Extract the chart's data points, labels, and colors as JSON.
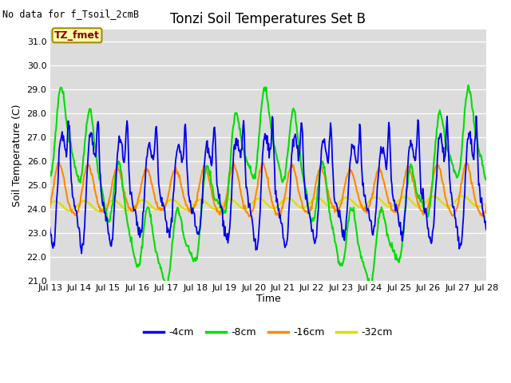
{
  "title": "Tonzi Soil Temperatures Set B",
  "xlabel": "Time",
  "ylabel": "Soil Temperature (C)",
  "no_data_text": "No data for f_Tsoil_2cmB",
  "tz_label": "TZ_fmet",
  "ylim": [
    21.0,
    31.5
  ],
  "yticks": [
    21.0,
    22.0,
    23.0,
    24.0,
    25.0,
    26.0,
    27.0,
    28.0,
    29.0,
    30.0,
    31.0
  ],
  "bg_color": "#dcdcdc",
  "line_colors": [
    "#0000ee",
    "#00dd00",
    "#ff8800",
    "#dddd00"
  ],
  "line_labels": [
    "-4cm",
    "-8cm",
    "-16cm",
    "-32cm"
  ],
  "mean_4cm": 25.8,
  "amp_4cm": 4.2,
  "mean_8cm": 24.9,
  "amp_8cm": 2.0,
  "mean_16cm": 24.7,
  "amp_16cm": 1.2,
  "mean_32cm": 24.1,
  "amp_32cm": 0.45,
  "lw_4cm": 1.3,
  "lw_others": 1.5
}
